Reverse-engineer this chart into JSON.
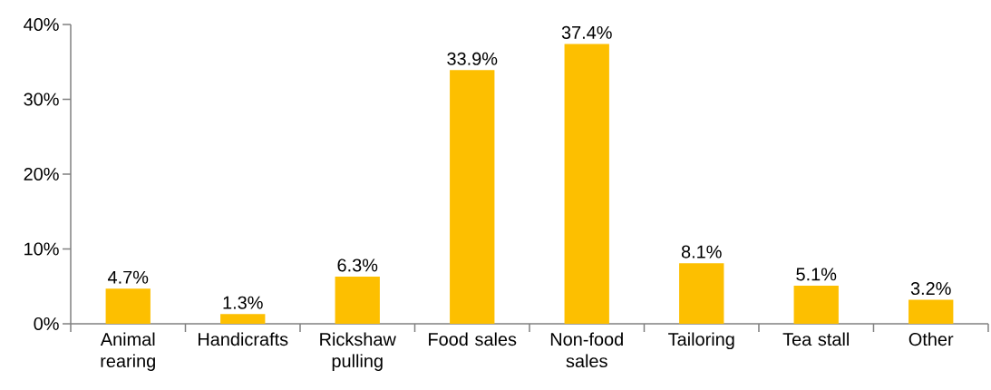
{
  "chart_data": {
    "type": "bar",
    "categories": [
      "Animal rearing",
      "Handicrafts",
      "Rickshaw pulling",
      "Food sales",
      "Non-food sales",
      "Tailoring",
      "Tea stall",
      "Other"
    ],
    "values": [
      4.7,
      1.3,
      6.3,
      33.9,
      37.4,
      8.1,
      5.1,
      3.2
    ],
    "value_labels": [
      "4.7%",
      "1.3%",
      "6.3%",
      "33.9%",
      "37.4%",
      "8.1%",
      "5.1%",
      "3.2%"
    ],
    "color": "#fdbf00",
    "ylim": [
      0,
      40
    ],
    "yticks": [
      {
        "value": 0,
        "label": "0%"
      },
      {
        "value": 10,
        "label": "10%"
      },
      {
        "value": 20,
        "label": "20%"
      },
      {
        "value": 30,
        "label": "30%"
      },
      {
        "value": 40,
        "label": "40%"
      }
    ],
    "grid": false
  }
}
